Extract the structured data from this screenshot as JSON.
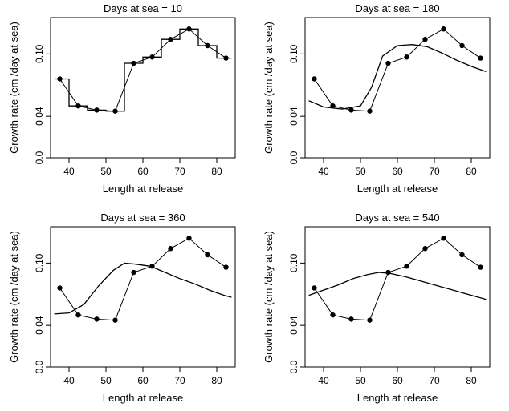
{
  "chart_data": [
    {
      "type": "line",
      "title": "Days at sea = 10",
      "xlabel": "Length at release",
      "ylabel": "Growth rate (cm /day at sea)",
      "xlim": [
        35,
        85
      ],
      "ylim": [
        0,
        0.135
      ],
      "x_ticks": [
        "40",
        "50",
        "60",
        "70",
        "80"
      ],
      "y_ticks": [
        "0.0",
        "0.04",
        "0.10"
      ],
      "series": [
        {
          "style": "points-connected",
          "x": [
            37.5,
            42.5,
            47.5,
            52.5,
            57.5,
            62.5,
            67.5,
            72.5,
            77.5,
            82.5
          ],
          "y": [
            0.076,
            0.05,
            0.046,
            0.045,
            0.091,
            0.097,
            0.114,
            0.124,
            0.108,
            0.096
          ]
        },
        {
          "style": "line",
          "x": [
            36,
            40,
            40,
            45,
            45,
            50,
            50,
            55,
            55,
            60,
            60,
            65,
            65,
            70,
            70,
            75,
            75,
            80,
            80,
            84
          ],
          "y": [
            0.076,
            0.076,
            0.05,
            0.05,
            0.046,
            0.046,
            0.045,
            0.045,
            0.091,
            0.091,
            0.097,
            0.097,
            0.114,
            0.114,
            0.124,
            0.124,
            0.108,
            0.108,
            0.096,
            0.096
          ]
        }
      ]
    },
    {
      "type": "line",
      "title": "Days at sea = 180",
      "xlabel": "Length at release",
      "ylabel": "Growth rate (cm /day at sea)",
      "xlim": [
        35,
        85
      ],
      "ylim": [
        0,
        0.135
      ],
      "x_ticks": [
        "40",
        "50",
        "60",
        "70",
        "80"
      ],
      "y_ticks": [
        "0.0",
        "0.04",
        "0.10"
      ],
      "series": [
        {
          "style": "points-connected",
          "x": [
            37.5,
            42.5,
            47.5,
            52.5,
            57.5,
            62.5,
            67.5,
            72.5,
            77.5,
            82.5
          ],
          "y": [
            0.076,
            0.05,
            0.046,
            0.045,
            0.091,
            0.097,
            0.114,
            0.124,
            0.108,
            0.096
          ]
        },
        {
          "style": "line",
          "x": [
            36,
            40,
            45,
            50,
            53,
            56,
            60,
            64,
            68,
            72,
            76,
            80,
            84
          ],
          "y": [
            0.055,
            0.049,
            0.047,
            0.05,
            0.068,
            0.098,
            0.108,
            0.109,
            0.107,
            0.101,
            0.094,
            0.088,
            0.083
          ]
        }
      ]
    },
    {
      "type": "line",
      "title": "Days at sea = 360",
      "xlabel": "Length at release",
      "ylabel": "Growth rate (cm /day at sea)",
      "xlim": [
        35,
        85
      ],
      "ylim": [
        0,
        0.135
      ],
      "x_ticks": [
        "40",
        "50",
        "60",
        "70",
        "80"
      ],
      "y_ticks": [
        "0.0",
        "0.04",
        "0.10"
      ],
      "series": [
        {
          "style": "points-connected",
          "x": [
            37.5,
            42.5,
            47.5,
            52.5,
            57.5,
            62.5,
            67.5,
            72.5,
            77.5,
            82.5
          ],
          "y": [
            0.076,
            0.05,
            0.046,
            0.045,
            0.091,
            0.097,
            0.114,
            0.124,
            0.108,
            0.096
          ]
        },
        {
          "style": "line",
          "x": [
            36,
            40,
            44,
            48,
            52,
            55,
            58,
            62,
            66,
            70,
            74,
            78,
            82,
            84
          ],
          "y": [
            0.051,
            0.052,
            0.06,
            0.078,
            0.093,
            0.1,
            0.099,
            0.097,
            0.091,
            0.085,
            0.08,
            0.074,
            0.069,
            0.067
          ]
        }
      ]
    },
    {
      "type": "line",
      "title": "Days at sea = 540",
      "xlabel": "Length at release",
      "ylabel": "Growth rate (cm /day at sea)",
      "xlim": [
        35,
        85
      ],
      "ylim": [
        0,
        0.135
      ],
      "x_ticks": [
        "40",
        "50",
        "60",
        "70",
        "80"
      ],
      "y_ticks": [
        "0.0",
        "0.04",
        "0.10"
      ],
      "series": [
        {
          "style": "points-connected",
          "x": [
            37.5,
            42.5,
            47.5,
            52.5,
            57.5,
            62.5,
            67.5,
            72.5,
            77.5,
            82.5
          ],
          "y": [
            0.076,
            0.05,
            0.046,
            0.045,
            0.091,
            0.097,
            0.114,
            0.124,
            0.108,
            0.096
          ]
        },
        {
          "style": "line",
          "x": [
            36,
            40,
            44,
            48,
            52,
            55,
            58,
            62,
            66,
            70,
            74,
            78,
            82,
            84
          ],
          "y": [
            0.069,
            0.074,
            0.079,
            0.085,
            0.089,
            0.091,
            0.09,
            0.087,
            0.083,
            0.079,
            0.075,
            0.071,
            0.067,
            0.065
          ]
        }
      ]
    }
  ]
}
